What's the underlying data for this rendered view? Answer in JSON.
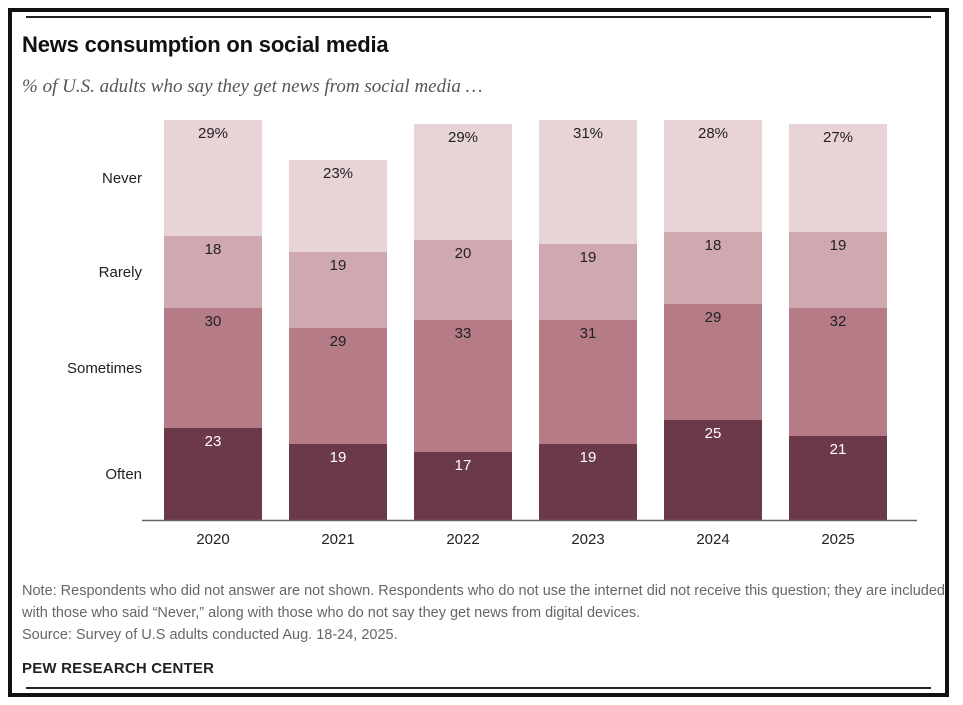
{
  "title": "News consumption on social media",
  "subtitle": "% of U.S. adults who say they get news from social media …",
  "note": "Note: Respondents who did not answer are not shown. Respondents who do not use the internet did not receive this question; they are included with those who said “Never,” along with those who do not say they get news from digital devices.",
  "source": "Source: Survey of U.S adults conducted Aug. 18-24, 2025.",
  "brand": "PEW RESEARCH CENTER",
  "colors": {
    "Often": "#6b3947",
    "Sometimes": "#b57b86",
    "Rarely": "#d0a9b0",
    "Never": "#e8d3d7",
    "axis": "#666666"
  },
  "chart_data": {
    "type": "bar",
    "stacked": true,
    "orientation": "vertical",
    "title": "News consumption on social media",
    "subtitle": "% of U.S. adults who say they get news from social media …",
    "categories": [
      "2020",
      "2021",
      "2022",
      "2023",
      "2024",
      "2025"
    ],
    "series": [
      {
        "name": "Often",
        "values": [
          23,
          19,
          17,
          19,
          25,
          21
        ],
        "labels": [
          "23",
          "19",
          "17",
          "19",
          "25",
          "21"
        ]
      },
      {
        "name": "Sometimes",
        "values": [
          30,
          29,
          33,
          31,
          29,
          32
        ],
        "labels": [
          "30",
          "29",
          "33",
          "31",
          "29",
          "32"
        ]
      },
      {
        "name": "Rarely",
        "values": [
          18,
          19,
          20,
          19,
          18,
          19
        ],
        "labels": [
          "18",
          "19",
          "20",
          "19",
          "18",
          "19"
        ]
      },
      {
        "name": "Never",
        "values": [
          29,
          23,
          29,
          31,
          28,
          27
        ],
        "labels": [
          "29%",
          "23%",
          "29%",
          "31%",
          "28%",
          "27%"
        ]
      }
    ],
    "legend": "left, beside first bar",
    "ylim": [
      0,
      100
    ],
    "xlabel": "",
    "ylabel": "",
    "grid": false
  }
}
